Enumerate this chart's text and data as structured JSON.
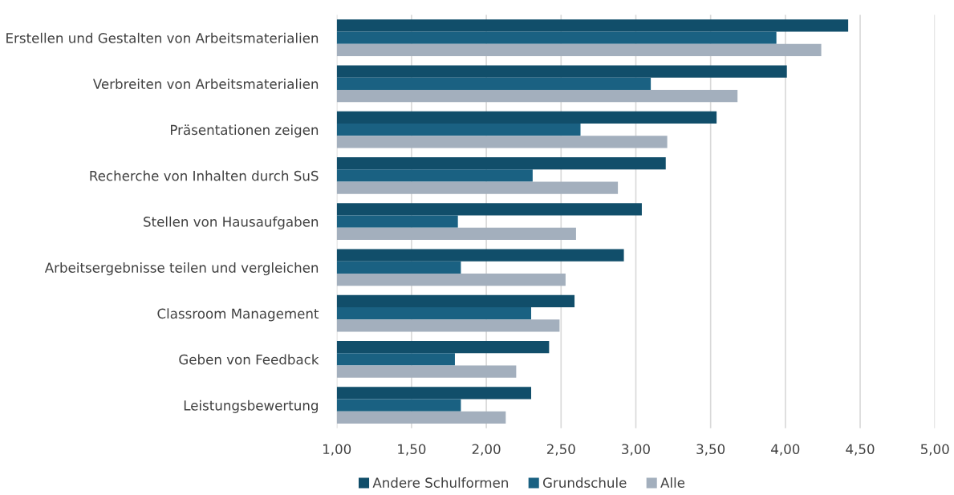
{
  "chart_data": {
    "type": "bar",
    "orientation": "horizontal",
    "categories": [
      "Erstellen und Gestalten von Arbeitsmaterialien",
      "Verbreiten von Arbeitsmaterialien",
      "Präsentationen zeigen",
      "Recherche von Inhalten durch SuS",
      "Stellen von Hausaufgaben",
      "Arbeitsergebnisse teilen und vergleichen",
      "Classroom Management",
      "Geben von Feedback",
      "Leistungsbewertung"
    ],
    "series": [
      {
        "name": "Andere Schulformen",
        "color": "#114e6a",
        "values": [
          4.42,
          4.01,
          3.54,
          3.2,
          3.04,
          2.92,
          2.59,
          2.42,
          2.3
        ]
      },
      {
        "name": "Grundschule",
        "color": "#1a6182",
        "values": [
          3.94,
          3.1,
          2.63,
          2.31,
          1.81,
          1.83,
          2.3,
          1.79,
          1.83
        ]
      },
      {
        "name": "Alle",
        "color": "#a3afbd",
        "values": [
          4.24,
          3.68,
          3.21,
          2.88,
          2.6,
          2.53,
          2.49,
          2.2,
          2.13
        ]
      }
    ],
    "xlim": [
      1,
      5
    ],
    "xticks": [
      {
        "value": 1,
        "label": "1,00"
      },
      {
        "value": 1.5,
        "label": "1,50"
      },
      {
        "value": 2,
        "label": "2,00"
      },
      {
        "value": 2.5,
        "label": "2,50"
      },
      {
        "value": 3,
        "label": "3,00"
      },
      {
        "value": 3.5,
        "label": "3,50"
      },
      {
        "value": 4,
        "label": "4,00"
      },
      {
        "value": 4.5,
        "label": "4,50"
      },
      {
        "value": 5,
        "label": "5,00"
      }
    ],
    "grid": "x",
    "legend": "bottom"
  }
}
